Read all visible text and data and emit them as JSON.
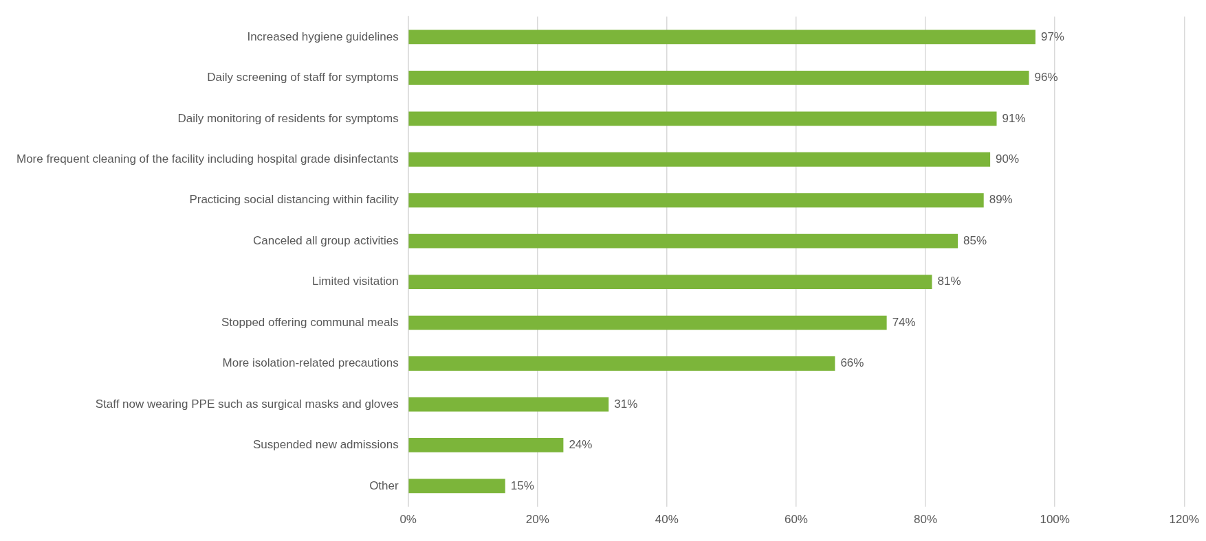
{
  "chart_data": {
    "type": "bar",
    "orientation": "horizontal",
    "categories": [
      "Increased hygiene guidelines",
      "Daily screening of staff for symptoms",
      "Daily monitoring of residents for symptoms",
      "More frequent cleaning of the facility including hospital grade disinfectants",
      "Practicing social distancing within facility",
      "Canceled all group activities",
      "Limited visitation",
      "Stopped offering communal meals",
      "More isolation-related precautions",
      "Staff now wearing PPE such as surgical masks and gloves",
      "Suspended new admissions",
      "Other"
    ],
    "values": [
      97,
      96,
      91,
      90,
      89,
      85,
      81,
      74,
      66,
      31,
      24,
      15
    ],
    "value_labels": [
      "97%",
      "96%",
      "91%",
      "90%",
      "89%",
      "85%",
      "81%",
      "74%",
      "66%",
      "31%",
      "24%",
      "15%"
    ],
    "color": "#7cb53a",
    "xlim": [
      0,
      120
    ],
    "xticks": [
      {
        "value": 0,
        "label": "0%"
      },
      {
        "value": 20,
        "label": "20%"
      },
      {
        "value": 40,
        "label": "40%"
      },
      {
        "value": 60,
        "label": "60%"
      },
      {
        "value": 80,
        "label": "80%"
      },
      {
        "value": 100,
        "label": "100%"
      },
      {
        "value": 120,
        "label": "120%"
      }
    ],
    "grid": "x",
    "legend": false
  }
}
